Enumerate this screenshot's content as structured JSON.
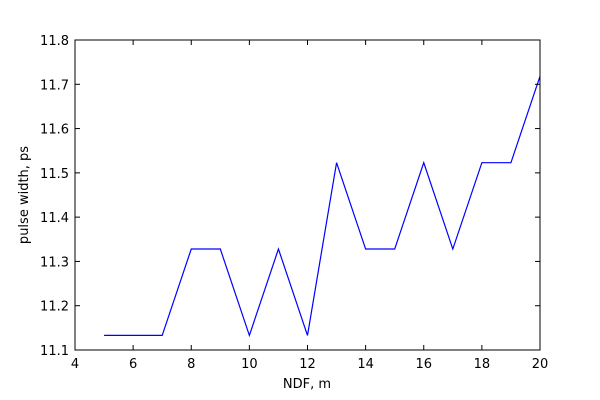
{
  "chart_data": {
    "type": "line",
    "xlabel": "NDF, m",
    "ylabel": "pulse width, ps",
    "xlim": [
      4,
      20
    ],
    "ylim": [
      11.1,
      11.8
    ],
    "xticks": [
      4,
      6,
      8,
      10,
      12,
      14,
      16,
      18,
      20
    ],
    "yticks": [
      11.1,
      11.2,
      11.3,
      11.4,
      11.5,
      11.6,
      11.7,
      11.8
    ],
    "xtick_labels": [
      "4",
      "6",
      "8",
      "10",
      "12",
      "14",
      "16",
      "18",
      "20"
    ],
    "ytick_labels": [
      "11.1",
      "11.2",
      "11.3",
      "11.4",
      "11.5",
      "11.6",
      "11.7",
      "11.8"
    ],
    "grid": false,
    "series": [
      {
        "color": "#0000ff",
        "x": [
          5,
          6,
          7,
          8,
          9,
          10,
          11,
          12,
          13,
          14,
          15,
          16,
          17,
          18,
          19,
          20
        ],
        "y": [
          11.133,
          11.133,
          11.133,
          11.328,
          11.328,
          11.133,
          11.328,
          11.133,
          11.523,
          11.328,
          11.328,
          11.523,
          11.328,
          11.523,
          11.523,
          11.718
        ]
      }
    ]
  }
}
